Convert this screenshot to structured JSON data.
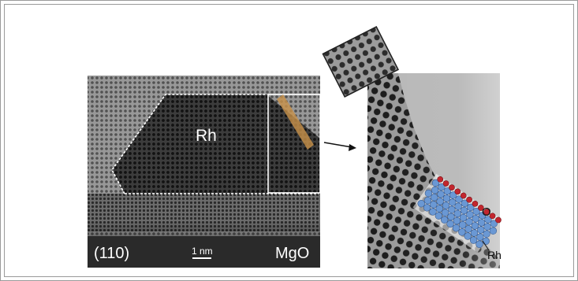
{
  "labels": {
    "particle": "Rh",
    "orientation": "(110)",
    "scale_bar": "1 nm",
    "substrate": "MgO",
    "oxygen": "O",
    "rhodium_atom": "Rh"
  },
  "colors": {
    "frame_border": "#9a9a9a",
    "outline": "#ffffff",
    "coating_band": "#c9924a",
    "rh_atoms": "#6a98d4",
    "o_atoms": "#c2262e"
  }
}
